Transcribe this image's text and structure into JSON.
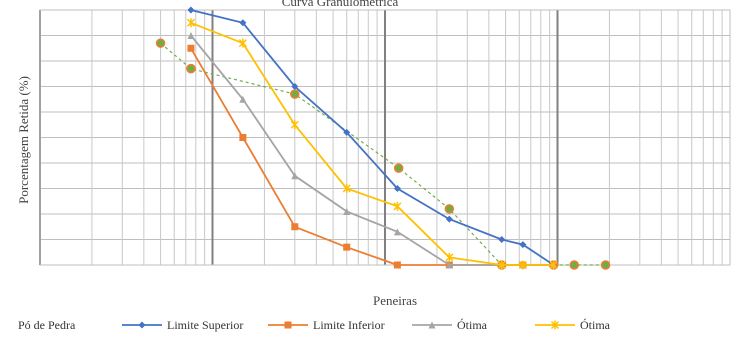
{
  "chart_data": {
    "type": "line",
    "title": "Curva Granulométrica",
    "xlabel": "Peneiras",
    "ylabel": "Porcentagem Retida (%)",
    "xscale": "log",
    "xlim": [
      0.01,
      100
    ],
    "ylim": [
      0,
      100
    ],
    "grid": true,
    "legend_position": "bottom",
    "series": [
      {
        "name": "Pó de Pedra",
        "color": "#70ad47",
        "style": "dotted",
        "x": [
          0.05,
          0.075,
          0.075,
          0.3,
          1.2,
          2.36,
          4.75,
          9.5,
          12.5,
          19
        ],
        "y": [
          87,
          77,
          77,
          67,
          38,
          22,
          0,
          0,
          0,
          0
        ]
      },
      {
        "name": "Limite Superior",
        "color": "#4472c4",
        "x": [
          0.075,
          0.15,
          0.3,
          0.6,
          1.18,
          2.36,
          4.75,
          6.3,
          9.5
        ],
        "y": [
          100,
          95,
          70,
          52,
          30,
          18,
          10,
          8,
          0
        ]
      },
      {
        "name": "Limite Inferior",
        "color": "#ed7d31",
        "x": [
          0.075,
          0.15,
          0.3,
          0.6,
          1.18,
          2.36,
          4.75,
          6.3,
          9.5
        ],
        "y": [
          85,
          50,
          15,
          7,
          0,
          0,
          0,
          0,
          0
        ]
      },
      {
        "name": "Ótima",
        "color": "#a5a5a5",
        "x": [
          0.075,
          0.15,
          0.3,
          0.6,
          1.18,
          2.36,
          4.75,
          6.3,
          9.5
        ],
        "y": [
          90,
          65,
          35,
          21,
          13,
          0,
          0,
          0,
          0
        ]
      },
      {
        "name": "Ótima",
        "color": "#ffc000",
        "x": [
          0.075,
          0.15,
          0.3,
          0.6,
          1.18,
          2.36,
          4.75,
          6.3,
          9.5
        ],
        "y": [
          95,
          87,
          55,
          30,
          23,
          3,
          0,
          0,
          0
        ]
      }
    ]
  }
}
